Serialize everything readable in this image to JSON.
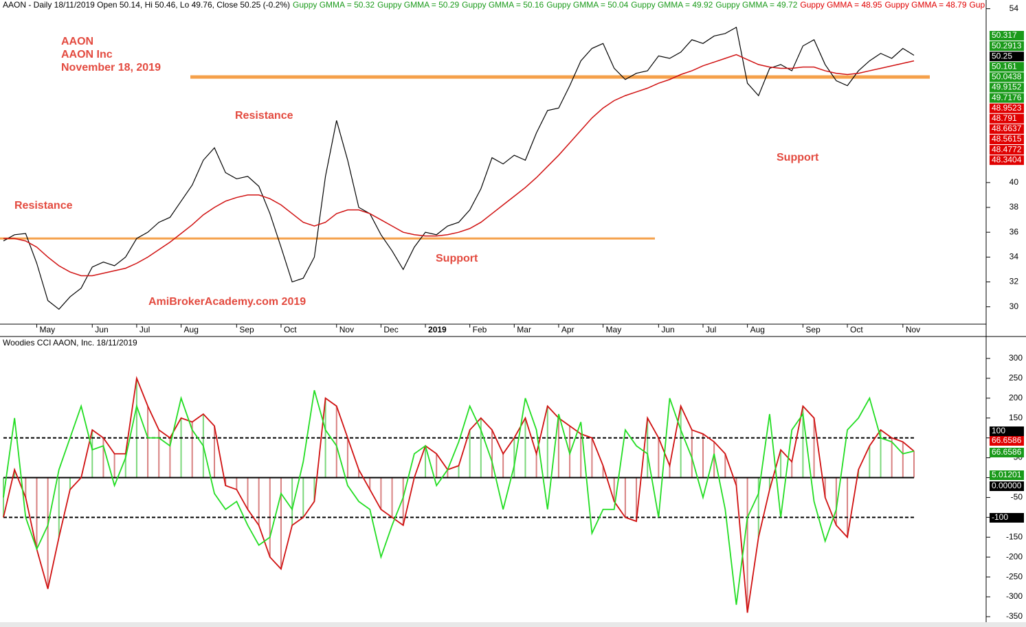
{
  "chart_data": [
    {
      "type": "line",
      "header": "AAON - Daily 18/11/2019 Open 50.14, Hi 50.46, Lo 49.76, Close 50.25 (-0.2%)",
      "header_items": [
        {
          "text": "Guppy GMMA = 50.32",
          "color": "#1a9a1a"
        },
        {
          "text": "Guppy GMMA = 50.29",
          "color": "#1a9a1a"
        },
        {
          "text": "Guppy GMMA = 50.16",
          "color": "#1a9a1a"
        },
        {
          "text": "Guppy GMMA = 50.04",
          "color": "#1a9a1a"
        },
        {
          "text": "Guppy GMMA = 49.92",
          "color": "#1a9a1a"
        },
        {
          "text": "Guppy GMMA = 49.72",
          "color": "#1a9a1a"
        },
        {
          "text": "Guppy GMMA = 48.95",
          "color": "#e00000"
        },
        {
          "text": "Guppy GMMA = 48.79",
          "color": "#e00000"
        },
        {
          "text": "Gup",
          "color": "#e00000"
        }
      ],
      "annotations": [
        "AAON",
        "AAON Inc",
        "November 18, 2019",
        "Resistance",
        "Resistance",
        "Support",
        "Support",
        "AmiBrokerAcademy.com  2019"
      ],
      "levels": [
        48.5,
        35.5
      ],
      "level_color": "#f5a04a",
      "categories": [
        null,
        null,
        null,
        "May",
        null,
        null,
        null,
        null,
        "Jun",
        null,
        null,
        null,
        "Jul",
        null,
        null,
        null,
        "Aug",
        null,
        null,
        null,
        null,
        "Sep",
        null,
        null,
        null,
        "Oct",
        null,
        null,
        null,
        null,
        "Nov",
        null,
        null,
        null,
        "Dec",
        null,
        null,
        null,
        "2019",
        null,
        null,
        null,
        "Feb",
        null,
        null,
        null,
        "Mar",
        null,
        null,
        null,
        "Apr",
        null,
        null,
        null,
        "May",
        null,
        null,
        null,
        null,
        "Jun",
        null,
        null,
        null,
        "Jul",
        null,
        null,
        null,
        "Aug",
        null,
        null,
        null,
        null,
        "Sep",
        null,
        null,
        null,
        "Oct",
        null,
        null,
        null,
        null,
        "Nov",
        null
      ],
      "series": [
        {
          "color": "#000000",
          "values": [
            35.3,
            35.8,
            35.9,
            33.5,
            30.5,
            29.8,
            30.8,
            31.5,
            33.2,
            33.6,
            33.3,
            34.0,
            35.5,
            36.0,
            36.8,
            37.2,
            38.5,
            39.8,
            41.8,
            42.8,
            40.8,
            40.3,
            40.5,
            39.7,
            37.5,
            34.8,
            32.0,
            32.3,
            34.0,
            40.5,
            45.0,
            41.8,
            38.0,
            37.5,
            35.8,
            34.5,
            33.0,
            34.8,
            36.0,
            35.8,
            36.5,
            36.8,
            37.8,
            39.5,
            42.0,
            41.5,
            42.2,
            41.8,
            44.0,
            45.8,
            46.0,
            47.8,
            49.8,
            50.8,
            51.2,
            49.2,
            48.3,
            48.8,
            49.0,
            50.2,
            50.0,
            50.5,
            51.5,
            51.2,
            51.8,
            52.0,
            52.5,
            48.0,
            47.0,
            49.2,
            49.5,
            49.0,
            51.0,
            51.5,
            49.5,
            48.2,
            47.8,
            49.0,
            49.8,
            50.4,
            50.0,
            50.8,
            50.25
          ]
        },
        {
          "color": "#d01010",
          "values": [
            35.5,
            35.5,
            35.3,
            34.8,
            34.0,
            33.3,
            32.8,
            32.5,
            32.5,
            32.7,
            32.9,
            33.1,
            33.5,
            34.0,
            34.6,
            35.2,
            35.9,
            36.6,
            37.4,
            38.0,
            38.5,
            38.8,
            39.0,
            39.0,
            38.7,
            38.2,
            37.5,
            36.8,
            36.5,
            36.8,
            37.5,
            37.8,
            37.8,
            37.5,
            37.0,
            36.5,
            36.0,
            35.8,
            35.7,
            35.7,
            35.8,
            36.0,
            36.3,
            36.8,
            37.5,
            38.2,
            38.9,
            39.6,
            40.4,
            41.3,
            42.2,
            43.2,
            44.2,
            45.2,
            46.0,
            46.6,
            47.0,
            47.3,
            47.6,
            48.0,
            48.3,
            48.7,
            49.0,
            49.4,
            49.7,
            50.0,
            50.3,
            49.9,
            49.5,
            49.3,
            49.2,
            49.2,
            49.3,
            49.3,
            49.0,
            48.8,
            48.7,
            48.8,
            49.0,
            49.2,
            49.4,
            49.6,
            49.8
          ]
        }
      ],
      "ylim": [
        28.6,
        54.7
      ],
      "yticks": [
        30,
        32,
        34,
        36,
        38,
        40,
        54
      ],
      "value_boxes": [
        {
          "value": 50.317,
          "color": "#1a9a1a"
        },
        {
          "value": 50.2913,
          "color": "#1a9a1a"
        },
        {
          "value": 50.25,
          "color": "#000000"
        },
        {
          "value": 50.161,
          "color": "#1a9a1a"
        },
        {
          "value": 50.0438,
          "color": "#1a9a1a"
        },
        {
          "value": 49.9152,
          "color": "#1a9a1a"
        },
        {
          "value": 49.7176,
          "color": "#1a9a1a"
        },
        {
          "value": 48.9523,
          "color": "#e00000"
        },
        {
          "value": 48.791,
          "color": "#e00000"
        },
        {
          "value": 48.6637,
          "color": "#e00000"
        },
        {
          "value": 48.5615,
          "color": "#e00000"
        },
        {
          "value": 48.4772,
          "color": "#e00000"
        },
        {
          "value": 48.3404,
          "color": "#e00000"
        }
      ]
    },
    {
      "type": "cci",
      "title": "Woodies CCI  AAON, Inc. 18/11/2019",
      "series": [
        {
          "color": "#d01010",
          "values": [
            -100,
            20,
            -50,
            -180,
            -280,
            -150,
            -30,
            0,
            120,
            100,
            60,
            60,
            250,
            180,
            120,
            100,
            150,
            140,
            160,
            130,
            -20,
            -30,
            -80,
            -120,
            -200,
            -230,
            -120,
            -100,
            -60,
            200,
            180,
            100,
            20,
            -30,
            -80,
            -100,
            -120,
            0,
            80,
            60,
            20,
            30,
            120,
            150,
            120,
            60,
            100,
            150,
            60,
            180,
            150,
            130,
            110,
            100,
            30,
            -60,
            -100,
            -110,
            150,
            100,
            30,
            180,
            120,
            110,
            90,
            60,
            -20,
            -340,
            -150,
            -30,
            70,
            40,
            180,
            150,
            -50,
            -120,
            -150,
            20,
            80,
            120,
            100,
            90,
            66.6586
          ]
        },
        {
          "color": "#22dd22",
          "values": [
            -50,
            150,
            -100,
            -180,
            -120,
            20,
            100,
            180,
            70,
            80,
            -20,
            50,
            180,
            100,
            100,
            80,
            200,
            120,
            80,
            -40,
            -80,
            -60,
            -120,
            -170,
            -150,
            -40,
            -80,
            40,
            220,
            120,
            80,
            -20,
            -60,
            -80,
            -200,
            -120,
            -50,
            60,
            80,
            -20,
            20,
            90,
            180,
            120,
            40,
            -80,
            30,
            200,
            120,
            -80,
            160,
            60,
            140,
            -140,
            -80,
            -80,
            120,
            80,
            60,
            -100,
            200,
            120,
            50,
            -50,
            60,
            -80,
            -320,
            -100,
            -40,
            160,
            -100,
            120,
            160,
            -60,
            -160,
            -80,
            120,
            150,
            200,
            100,
            90,
            60,
            66.6586
          ]
        }
      ],
      "ref_lines": [
        100,
        0,
        -100
      ],
      "ylim": [
        -376,
        350
      ],
      "yticks": [
        -350,
        -300,
        -250,
        -200,
        -150,
        -100,
        -50,
        0,
        50,
        100,
        150,
        200,
        250,
        300
      ],
      "value_boxes": [
        {
          "value": 100,
          "color": "#000000"
        },
        {
          "value": 66.6586,
          "color": "#e00000"
        },
        {
          "value": 66.6586,
          "color": "#1a9a1a"
        },
        {
          "value": 5.01201,
          "color": "#1a9a1a"
        },
        {
          "value": 0,
          "label": "0.00000",
          "color": "#000000"
        },
        {
          "value": -100,
          "color": "#000000"
        }
      ]
    }
  ]
}
